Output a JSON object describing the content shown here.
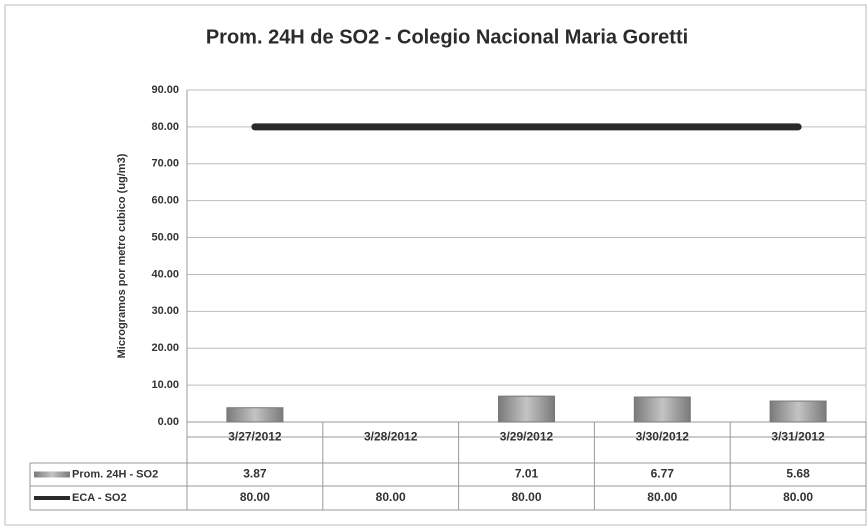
{
  "chart_data": {
    "type": "bar",
    "title": "Prom. 24H de SO2 - Colegio Nacional Maria Goretti",
    "y_label": "Microgramos por metro cubico (ug/m3)",
    "categories": [
      "3/27/2012",
      "3/28/2012",
      "3/29/2012",
      "3/30/2012",
      "3/31/2012"
    ],
    "series": [
      {
        "name": "Prom. 24H - SO2",
        "type": "bar",
        "color": "#9a9a9a",
        "values": [
          3.87,
          null,
          7.01,
          6.77,
          5.68
        ],
        "value_labels": [
          "3.87",
          null,
          "7.01",
          "6.77",
          "5.68"
        ]
      },
      {
        "name": "ECA - SO2",
        "type": "line",
        "color": "#2a2a2a",
        "values": [
          80,
          80,
          80,
          80,
          80
        ],
        "value_labels": [
          "80.00",
          "80.00",
          "80.00",
          "80.00",
          "80.00"
        ]
      }
    ],
    "ylim": [
      0,
      90
    ],
    "yticks": [
      {
        "value": 0,
        "label": "0.00"
      },
      {
        "value": 10,
        "label": "10.00"
      },
      {
        "value": 20,
        "label": "20.00"
      },
      {
        "value": 30,
        "label": "30.00"
      },
      {
        "value": 40,
        "label": "40.00"
      },
      {
        "value": 50,
        "label": "50.00"
      },
      {
        "value": 60,
        "label": "60.00"
      },
      {
        "value": 70,
        "label": "70.00"
      },
      {
        "value": 80,
        "label": "80.00"
      },
      {
        "value": 90,
        "label": "90.00"
      }
    ],
    "grid": true,
    "legend": "table"
  }
}
